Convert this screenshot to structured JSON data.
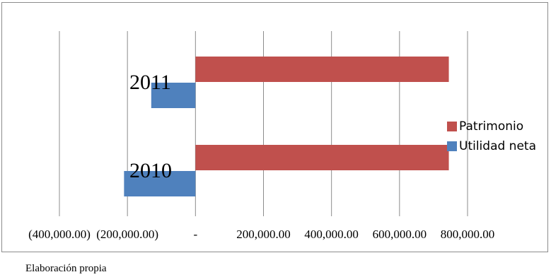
{
  "chart_data": {
    "type": "bar",
    "orientation": "horizontal",
    "categories": [
      "2010",
      "2011"
    ],
    "series": [
      {
        "name": "Utilidad neta",
        "color": "#4f81bd",
        "values": [
          -210000,
          -130000
        ]
      },
      {
        "name": "Patrimonio",
        "color": "#c0504d",
        "values": [
          745000,
          745000
        ]
      }
    ],
    "xlim": [
      -400000,
      800000
    ],
    "tick_values": [
      -400000,
      -200000,
      0,
      200000,
      400000,
      600000,
      800000
    ],
    "tick_labels": [
      "(400,000.00)",
      "(200,000.00)",
      "-",
      "200,000.00",
      "400,000.00",
      "600,000.00",
      "800,000.00"
    ],
    "grid": true,
    "legend_position": "right"
  },
  "legend_order": [
    1,
    0
  ],
  "footer_note": "Elaboración propia"
}
